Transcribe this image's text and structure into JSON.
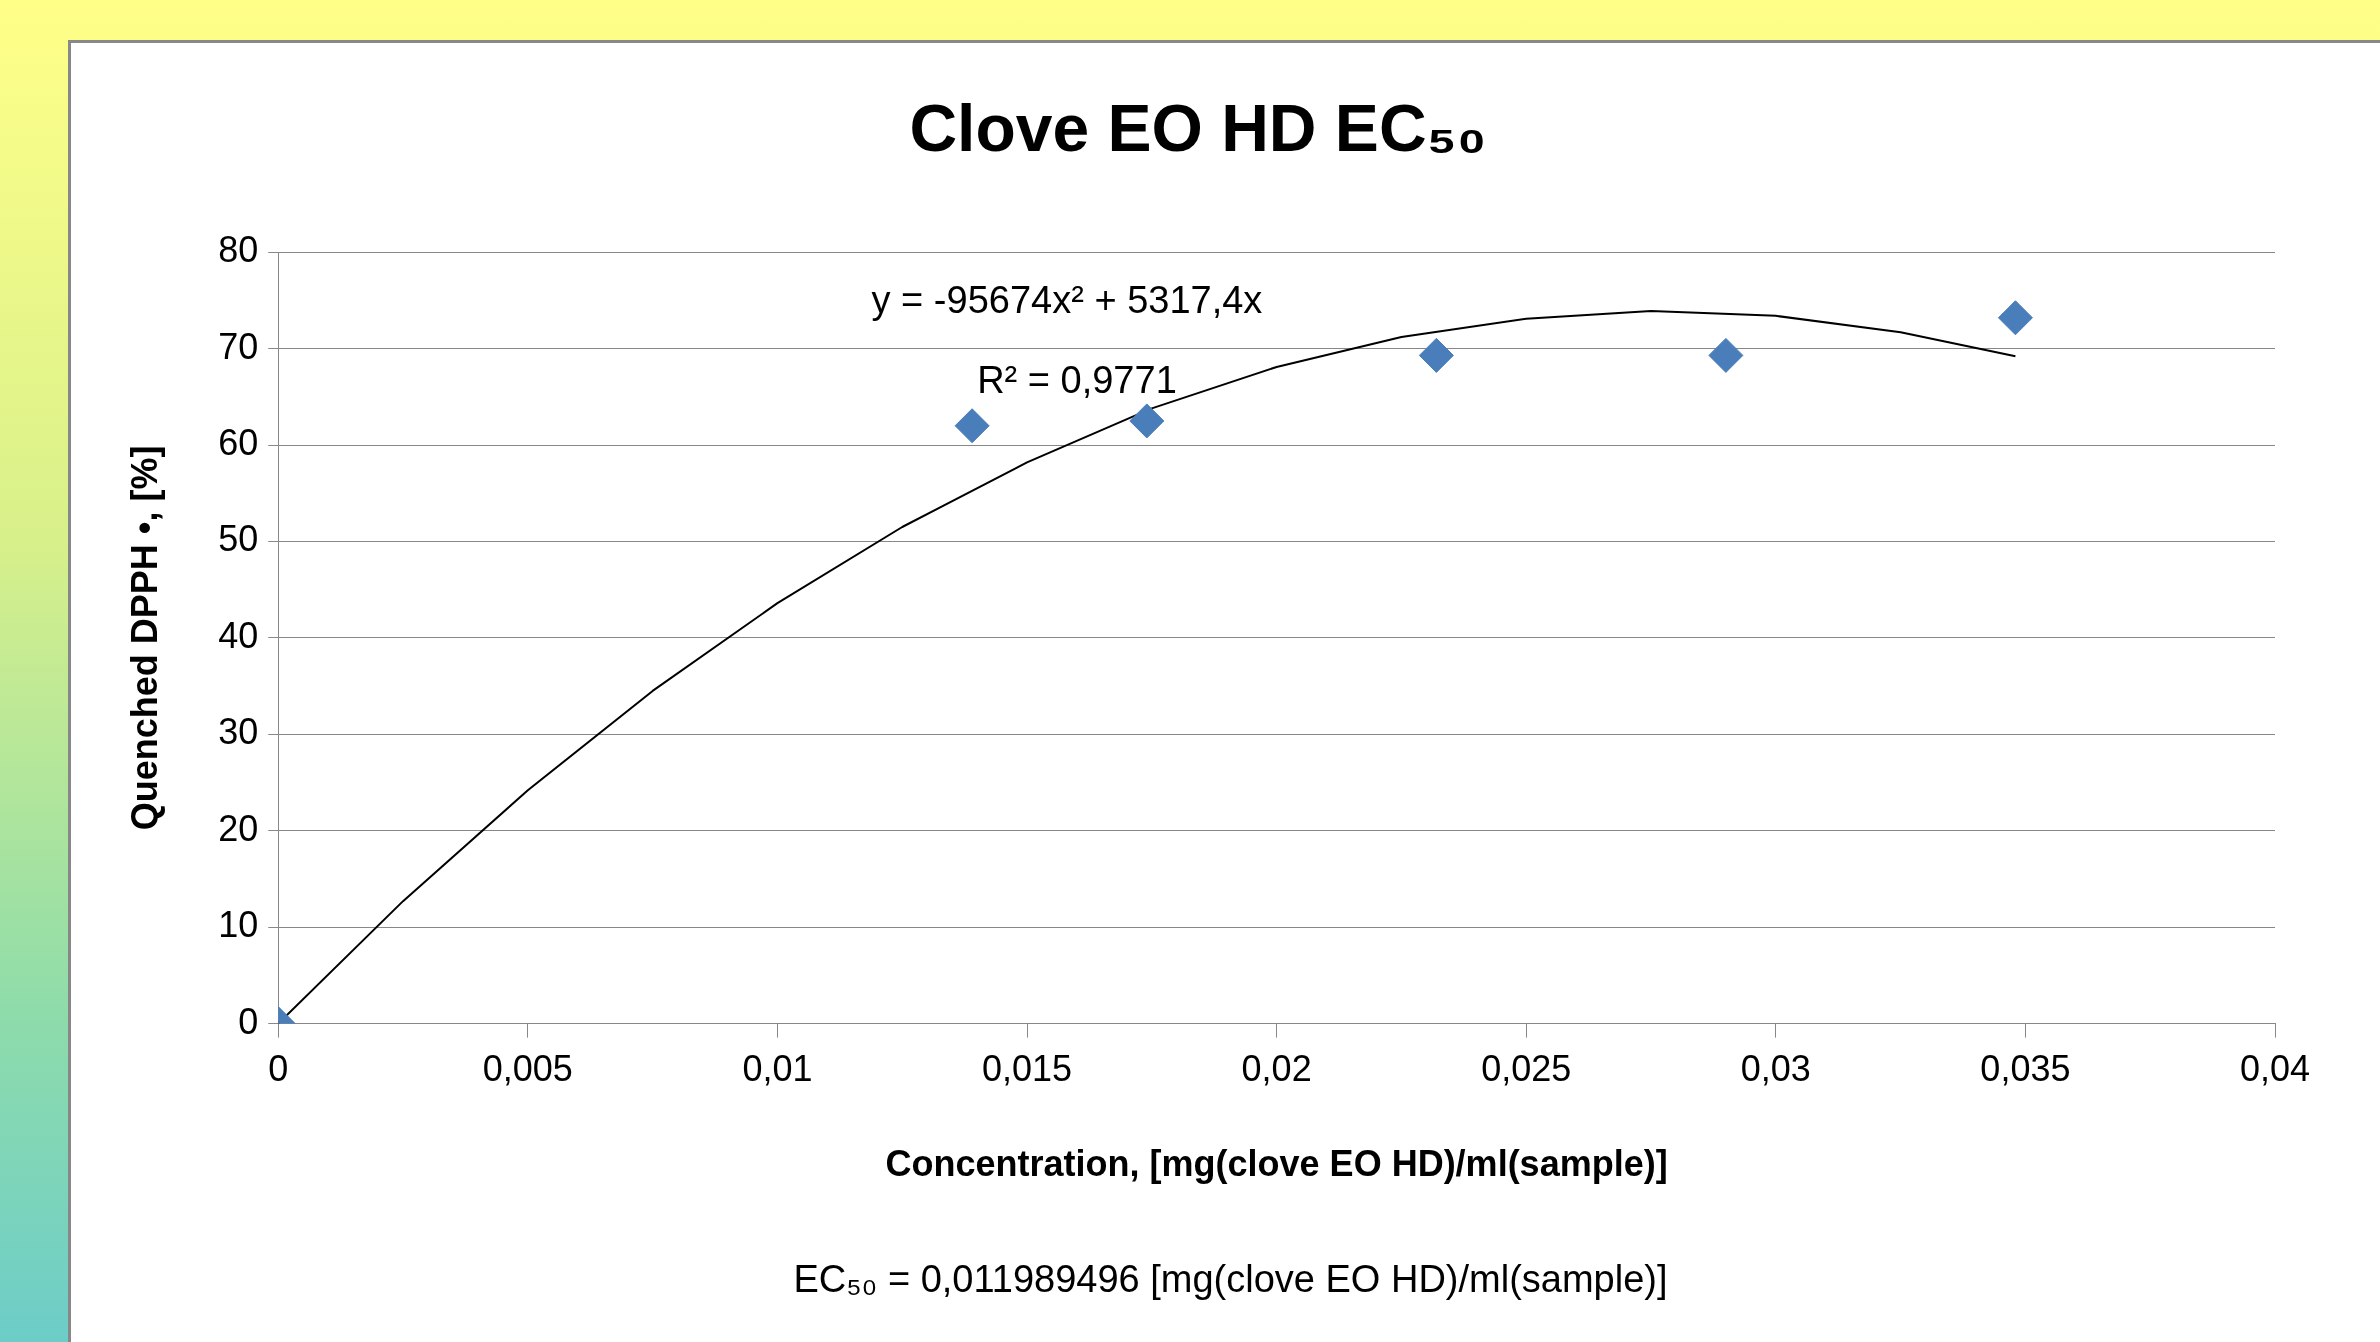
{
  "chart_data": {
    "type": "scatter",
    "title": "Clove EO HD EC₅₀",
    "xlabel": "Concentration, [mg(clove EO HD)/ml(sample)]",
    "ylabel": "Quenched DPPH •, [%]",
    "x": [
      0,
      0.0139,
      0.0174,
      0.0232,
      0.029,
      0.0348
    ],
    "series": [
      {
        "type": "scatter",
        "color": "#4a7ebb",
        "marker": "diamond",
        "values": [
          0,
          62,
          62.5,
          69.3,
          69.3,
          73.2
        ]
      },
      {
        "type": "line",
        "color": "#000000",
        "marker": "none",
        "x": [
          0,
          0.0025,
          0.005,
          0.0075,
          0.01,
          0.0125,
          0.015,
          0.0175,
          0.02,
          0.0225,
          0.025,
          0.0275,
          0.03,
          0.0325,
          0.0348
        ],
        "values": [
          0,
          12.7,
          24.2,
          34.5,
          43.6,
          51.5,
          58.2,
          63.8,
          68.1,
          71.2,
          73.1,
          73.9,
          73.4,
          71.7,
          69.2
        ]
      }
    ],
    "xlim": [
      0,
      0.04
    ],
    "xticks": [
      0,
      {
        "value": 0.005,
        "label": "0,005"
      },
      {
        "value": 0.01,
        "label": "0,01"
      },
      {
        "value": 0.015,
        "label": "0,015"
      },
      {
        "value": 0.02,
        "label": "0,02"
      },
      {
        "value": 0.025,
        "label": "0,025"
      },
      {
        "value": 0.03,
        "label": "0,03"
      },
      {
        "value": 0.035,
        "label": "0,035"
      },
      {
        "value": 0.04,
        "label": "0,04"
      }
    ],
    "ylim": [
      0,
      80
    ],
    "yticks": [
      0,
      10,
      20,
      30,
      40,
      50,
      60,
      70,
      80
    ],
    "grid": "y",
    "legend": false,
    "annotations": [
      "y = -95674x² + 5317,4x",
      "R² = 0,9771",
      "EC₅₀ = 0,011989496 [mg(clove EO HD)/ml(sample)]"
    ]
  }
}
